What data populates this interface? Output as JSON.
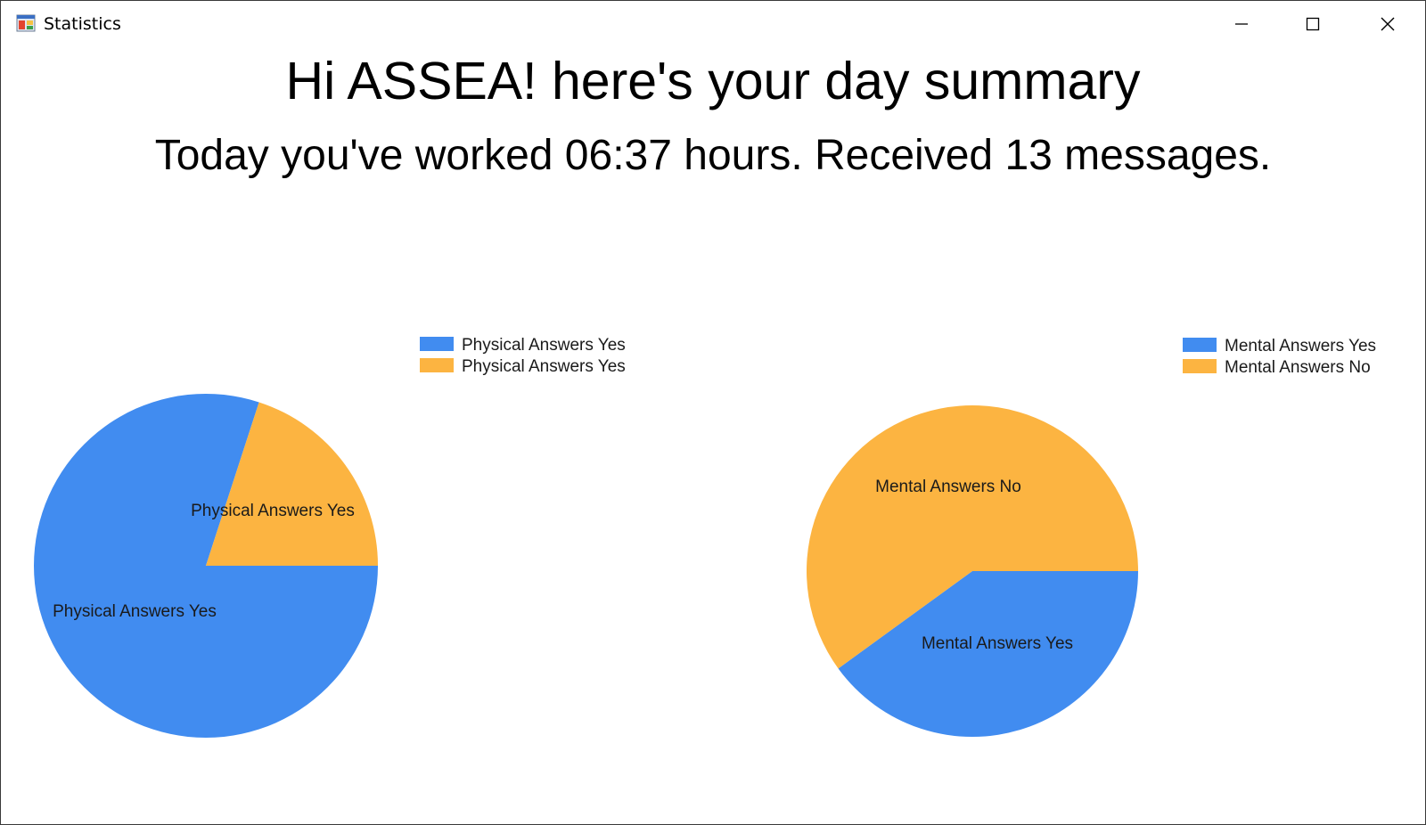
{
  "window": {
    "title": "Statistics",
    "icon": "app-window-icon",
    "controls": [
      "minimize-icon",
      "maximize-icon",
      "close-icon"
    ]
  },
  "greeting": "Hi ASSEA! here's your day summary",
  "summary": "Today you've worked 06:37 hours. Received 13 messages.",
  "colors": {
    "blue": "#418CF0",
    "orange": "#FCB441"
  },
  "chart_data": [
    {
      "type": "pie",
      "title": "",
      "legend_position": "top-right",
      "slices": [
        {
          "label": "Physical Answers Yes",
          "value": 80,
          "color": "#418CF0"
        },
        {
          "label": "Physical Answers Yes",
          "value": 20,
          "color": "#FCB441"
        }
      ]
    },
    {
      "type": "pie",
      "title": "",
      "legend_position": "top-right",
      "slices": [
        {
          "label": "Mental Answers Yes",
          "value": 40,
          "color": "#418CF0"
        },
        {
          "label": "Mental Answers No",
          "value": 60,
          "color": "#FCB441"
        }
      ]
    }
  ]
}
